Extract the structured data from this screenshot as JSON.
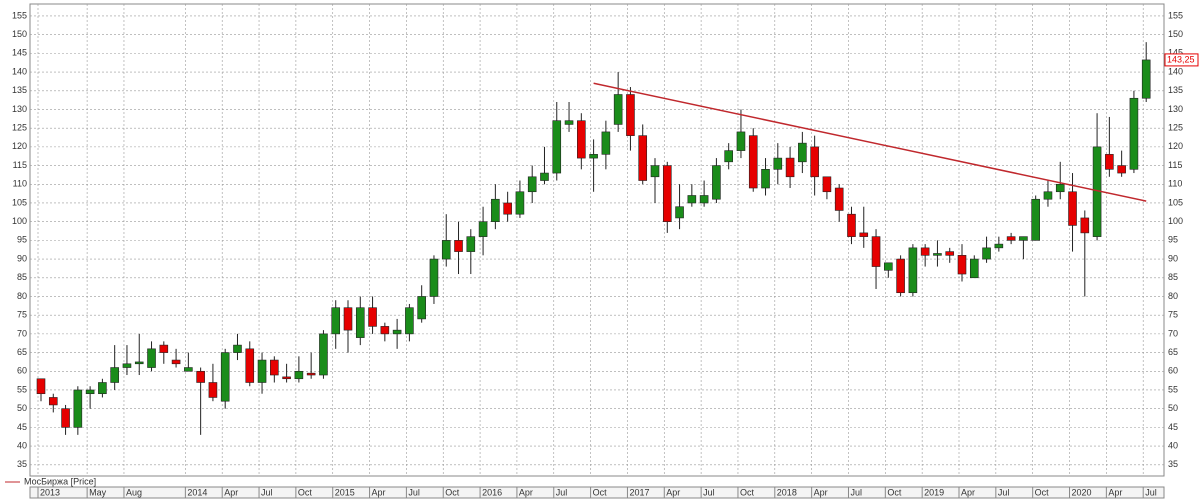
{
  "chart_data": {
    "type": "candlestick",
    "legend": "МосБиржа [Price]",
    "categories": [
      "2013",
      null,
      null,
      null,
      "May",
      null,
      null,
      "Aug",
      null,
      null,
      null,
      null,
      "2014",
      null,
      null,
      "Apr",
      null,
      null,
      "Jul",
      null,
      null,
      "Oct",
      null,
      null,
      "2015",
      null,
      null,
      "Apr",
      null,
      null,
      "Jul",
      null,
      null,
      "Oct",
      null,
      null,
      "2016",
      null,
      null,
      "Apr",
      null,
      null,
      "Jul",
      null,
      null,
      "Oct",
      null,
      null,
      "2017",
      null,
      null,
      "Apr",
      null,
      null,
      "Jul",
      null,
      null,
      "Oct",
      null,
      null,
      "2018",
      null,
      null,
      "Apr",
      null,
      null,
      "Jul",
      null,
      null,
      "Oct",
      null,
      null,
      "2019",
      null,
      null,
      "Apr",
      null,
      null,
      "Jul",
      null,
      null,
      "Oct",
      null,
      null,
      "2020",
      null,
      null,
      "Apr",
      null,
      null,
      "Jul"
    ],
    "open": [
      58,
      53,
      50,
      45,
      54,
      54,
      57,
      61,
      62,
      61,
      67,
      63,
      60,
      60,
      57,
      52,
      65,
      66,
      57,
      63,
      58.5,
      58,
      59.5,
      59,
      70,
      77,
      69,
      77,
      72,
      70,
      70,
      74,
      80,
      90,
      95,
      92,
      96,
      100,
      105,
      102,
      108,
      111,
      113,
      126,
      127,
      117,
      118,
      126,
      134,
      123,
      112,
      115,
      101,
      105,
      105,
      106,
      116,
      119,
      123,
      109,
      114,
      117,
      116,
      120,
      112,
      109,
      102,
      97,
      96,
      87,
      90,
      81,
      93,
      91,
      92,
      91,
      85,
      90,
      93,
      96,
      95,
      95,
      106,
      108,
      108,
      101,
      96,
      118,
      115,
      114,
      133
    ],
    "high": [
      58,
      54,
      51,
      56,
      56,
      58,
      67,
      67,
      70,
      68,
      68,
      66,
      65,
      61,
      62,
      66,
      70,
      68,
      65,
      64,
      62,
      64,
      65,
      71,
      79,
      79,
      80,
      80,
      73,
      74,
      78,
      83,
      91,
      102,
      100,
      98,
      104,
      110,
      108,
      111,
      115,
      120,
      132,
      132,
      129,
      122,
      127,
      140,
      136,
      126,
      117,
      116,
      110,
      110,
      111,
      117,
      121,
      130,
      125,
      117,
      121,
      120,
      124,
      123,
      112,
      110,
      104,
      104,
      98,
      89,
      91,
      94,
      94,
      95,
      93,
      94,
      91,
      96,
      96,
      97,
      96,
      107,
      111,
      116,
      113,
      103,
      129,
      128,
      119,
      135,
      148
    ],
    "low": [
      52,
      49,
      43,
      43,
      50,
      53,
      55,
      59,
      59,
      60,
      62,
      61,
      60,
      43,
      52,
      50,
      63,
      56,
      54,
      57,
      57,
      57,
      58,
      58,
      66,
      65,
      67,
      70,
      68,
      66,
      68,
      73,
      78,
      88,
      86,
      86,
      91,
      98,
      100,
      101,
      105,
      110,
      111,
      124,
      114,
      108,
      114,
      124,
      119,
      110,
      105,
      97,
      98,
      104,
      104,
      105,
      114,
      117,
      108,
      107,
      110,
      109,
      113,
      107,
      106,
      100,
      94,
      93,
      82,
      85,
      80,
      80,
      88,
      88,
      89,
      84,
      85,
      89,
      92,
      94,
      90,
      95,
      104,
      106,
      92,
      80,
      95,
      112,
      112,
      113,
      132
    ],
    "close": [
      54,
      51,
      45,
      55,
      55,
      57,
      61,
      62,
      62.5,
      66,
      65,
      62,
      61,
      57,
      53,
      65,
      67,
      57,
      63,
      59,
      58,
      60,
      59,
      70,
      77,
      71,
      77,
      72,
      70,
      71,
      77,
      80,
      90,
      95,
      92,
      96,
      100,
      106,
      102,
      108,
      112,
      113,
      127,
      127,
      117,
      118,
      124,
      134,
      123,
      111,
      115,
      100,
      104,
      107,
      107,
      115,
      119,
      124,
      109,
      114,
      117,
      112,
      121,
      112,
      108,
      103,
      96,
      96,
      88,
      89,
      81,
      93,
      91,
      91.5,
      91,
      86,
      90,
      93,
      94,
      95,
      96,
      106,
      108,
      110,
      99,
      97,
      120,
      114,
      113,
      133,
      143.25
    ],
    "last_price_label": "143,25",
    "up_color": "#1a8c1a",
    "down_color": "#e60000",
    "trendline": {
      "x": [
        45,
        90
      ],
      "y": [
        137,
        105.5
      ],
      "color": "#c0282d"
    },
    "ylim": [
      32,
      158.2
    ],
    "yticks": [
      35,
      40,
      45,
      50,
      55,
      60,
      65,
      70,
      75,
      80,
      85,
      90,
      95,
      100,
      105,
      110,
      115,
      120,
      125,
      130,
      135,
      140,
      145,
      150,
      155
    ],
    "grid": true
  }
}
